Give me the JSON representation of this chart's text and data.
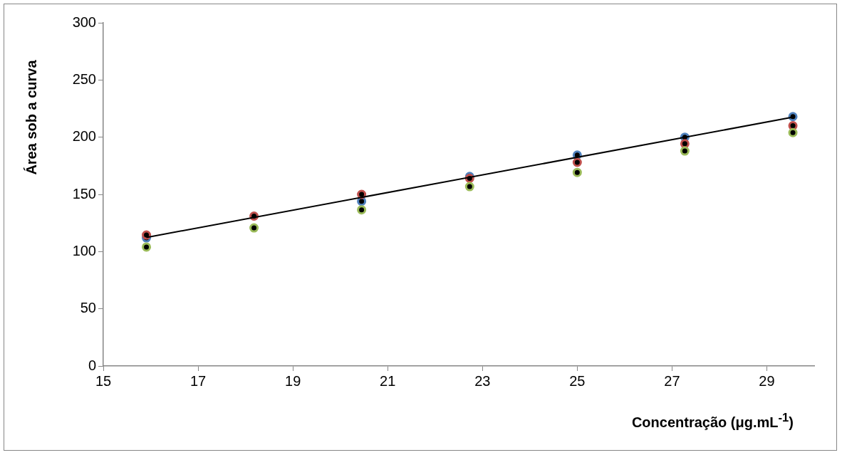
{
  "chart_data": {
    "type": "scatter",
    "xlabel": "Concentração (μg.mL$^{-1}$)",
    "ylabel": "Área sob a curva",
    "x": [
      15.91,
      18.18,
      20.45,
      22.73,
      25.0,
      27.27,
      29.55
    ],
    "series": [
      {
        "color": "#4f81bd",
        "values": [
          112,
          null,
          144,
          165.7,
          184.4,
          200,
          218
        ]
      },
      {
        "color": "#c0504d",
        "values": [
          114.5,
          131,
          150,
          164,
          178,
          194.3,
          210
        ]
      },
      {
        "color": "#9bbb59",
        "values": [
          104,
          120.7,
          136.5,
          156.8,
          169.2,
          187.9,
          204
        ]
      },
      {
        "type": "line",
        "color": "#000000",
        "marker": "none",
        "x": [
          15.91,
          29.55
        ],
        "values": [
          112.4,
          217.5
        ]
      }
    ],
    "marker": "circle",
    "xlim": [
      15,
      30
    ],
    "ylim": [
      0,
      300
    ],
    "xticks": [
      15,
      17,
      19,
      21,
      23,
      25,
      27,
      29
    ],
    "yticks": [
      0,
      50,
      100,
      150,
      200,
      250,
      300
    ]
  }
}
